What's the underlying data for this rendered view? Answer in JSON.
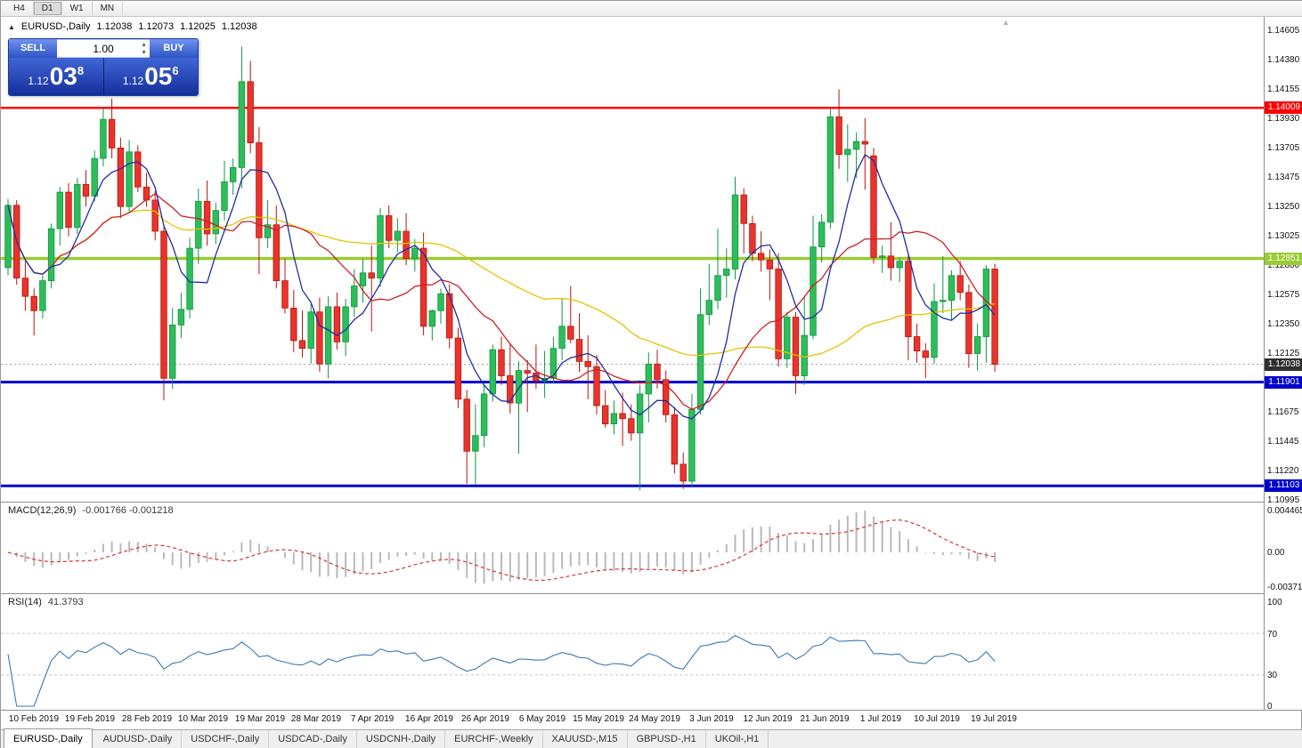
{
  "toolbar": {
    "timeframes": [
      "H4",
      "D1",
      "W1",
      "MN"
    ],
    "active": "D1"
  },
  "chart_header": {
    "collapse_icon": "▲",
    "symbol": "EURUSD-,Daily",
    "open": "1.12038",
    "high": "1.12073",
    "low": "1.12025",
    "close": "1.12038"
  },
  "trade_panel": {
    "sell_label": "SELL",
    "buy_label": "BUY",
    "volume": "1.00",
    "spinner_up_icon": "▲",
    "spinner_down_icon": "▼",
    "sell_price": {
      "prefix": "1.12",
      "big": "03",
      "sup": "8"
    },
    "buy_price": {
      "prefix": "1.12",
      "big": "05",
      "sup": "6"
    }
  },
  "current_price": {
    "value": 1.12038,
    "label": "1.12038",
    "badge_color": "#2f2f2f"
  },
  "hlines": [
    {
      "name": "resistance",
      "price": 1.14009,
      "label": "1.14009",
      "color": "#ff0000",
      "width": 2.5
    },
    {
      "name": "pivot",
      "price": 1.12851,
      "label": "1.12851",
      "color": "#9acd32",
      "width": 3.5
    },
    {
      "name": "support-1",
      "price": 1.11901,
      "label": "1.11901",
      "color": "#0000cd",
      "width": 3
    },
    {
      "name": "support-2",
      "price": 1.11103,
      "label": "1.11103",
      "color": "#0000cd",
      "width": 3
    }
  ],
  "macd_panel": {
    "label": "MACD(12,26,9)",
    "values": "-0.001766 -0.001218",
    "scale": [
      "0.004465",
      "0.00",
      "-0.003715"
    ],
    "fast": 12,
    "slow": 26,
    "signal": 9
  },
  "rsi_panel": {
    "label": "RSI(14)",
    "value": "41.3793",
    "scale": [
      "100",
      "70",
      "30",
      "0"
    ],
    "levels": [
      70,
      30
    ],
    "period": 14
  },
  "shift_marker_icon": "▲",
  "tabs": [
    {
      "label": "EURUSD-,Daily",
      "active": true
    },
    {
      "label": "AUDUSD-,Daily",
      "active": false
    },
    {
      "label": "USDCHF-,Daily",
      "active": false
    },
    {
      "label": "USDCAD-,Daily",
      "active": false
    },
    {
      "label": "USDCNH-,Daily",
      "active": false
    },
    {
      "label": "EURCHF-,Weekly",
      "active": false
    },
    {
      "label": "XAUUSD-,M15",
      "active": false
    },
    {
      "label": "GBPUSD-,H1",
      "active": false
    },
    {
      "label": "UKOil-,H1",
      "active": false
    }
  ],
  "colors": {
    "bull_fill": "#2ebd59",
    "bull_stroke": "#0e9640",
    "bear_fill": "#e8342c",
    "bear_stroke": "#b5170f",
    "macd_hist": "#b9b9b9",
    "macd_signal": "#dd3333",
    "rsi_line": "#3c78b4",
    "current_price_line": "#a0a0a0"
  },
  "chart_data": {
    "type": "candlestick",
    "title": "EURUSD-,Daily",
    "symbol": "EURUSD-",
    "timeframe": "Daily",
    "price_axis": {
      "top_label_price": 1.14605,
      "label_step": 0.00225,
      "labels": [
        "1.14605",
        "1.14380",
        "1.14155",
        "1.13930",
        "1.13705",
        "1.13475",
        "1.13250",
        "1.13025",
        "1.12800",
        "1.12575",
        "1.12350",
        "1.12125",
        "1.11900",
        "1.11675",
        "1.11445",
        "1.11220",
        "1.10995"
      ]
    },
    "dates": [
      "10 Feb 2019",
      "19 Feb 2019",
      "28 Feb 2019",
      "10 Mar 2019",
      "19 Mar 2019",
      "28 Mar 2019",
      "7 Apr 2019",
      "16 Apr 2019",
      "26 Apr 2019",
      "6 May 2019",
      "15 May 2019",
      "24 May 2019",
      "3 Jun 2019",
      "12 Jun 2019",
      "21 Jun 2019",
      "1 Jul 2019",
      "10 Jul 2019",
      "19 Jul 2019"
    ],
    "moving_averages": [
      {
        "period": 45,
        "color": "#e6c200",
        "name": "ma-slow-yellow"
      },
      {
        "period": 14,
        "color": "#cc2222",
        "name": "ma-mid-red"
      },
      {
        "period": 6,
        "color": "#1f2fa0",
        "name": "ma-fast-blue"
      }
    ],
    "candles": [
      [
        1.1278,
        1.1331,
        1.1272,
        1.1326
      ],
      [
        1.1326,
        1.133,
        1.1265,
        1.127
      ],
      [
        1.127,
        1.1283,
        1.1245,
        1.1256
      ],
      [
        1.1256,
        1.1262,
        1.1226,
        1.1245
      ],
      [
        1.1245,
        1.1272,
        1.1239,
        1.1268
      ],
      [
        1.1268,
        1.1312,
        1.1262,
        1.1308
      ],
      [
        1.1308,
        1.134,
        1.1295,
        1.1336
      ],
      [
        1.1336,
        1.1343,
        1.1302,
        1.1309
      ],
      [
        1.1309,
        1.1347,
        1.1304,
        1.1342
      ],
      [
        1.1342,
        1.1353,
        1.1325,
        1.1333
      ],
      [
        1.1333,
        1.1368,
        1.1329,
        1.1362
      ],
      [
        1.1362,
        1.1402,
        1.1356,
        1.1392
      ],
      [
        1.1392,
        1.1408,
        1.1362,
        1.137
      ],
      [
        1.137,
        1.1378,
        1.1316,
        1.1325
      ],
      [
        1.1325,
        1.1376,
        1.132,
        1.1367
      ],
      [
        1.1367,
        1.1372,
        1.1336,
        1.134
      ],
      [
        1.134,
        1.1351,
        1.1325,
        1.133
      ],
      [
        1.133,
        1.1337,
        1.1299,
        1.1306
      ],
      [
        1.1306,
        1.1311,
        1.1176,
        1.1193
      ],
      [
        1.1193,
        1.1247,
        1.1185,
        1.1234
      ],
      [
        1.1234,
        1.1259,
        1.1224,
        1.1246
      ],
      [
        1.1246,
        1.1301,
        1.1239,
        1.1293
      ],
      [
        1.1293,
        1.1339,
        1.1281,
        1.1329
      ],
      [
        1.1329,
        1.1345,
        1.1295,
        1.1304
      ],
      [
        1.1304,
        1.1328,
        1.1296,
        1.1322
      ],
      [
        1.1322,
        1.136,
        1.1314,
        1.1344
      ],
      [
        1.1344,
        1.1362,
        1.1334,
        1.1355
      ],
      [
        1.1355,
        1.1448,
        1.1339,
        1.1421
      ],
      [
        1.1421,
        1.1437,
        1.1366,
        1.1374
      ],
      [
        1.1374,
        1.1386,
        1.1273,
        1.1301
      ],
      [
        1.1301,
        1.133,
        1.1293,
        1.1311
      ],
      [
        1.1311,
        1.1326,
        1.1262,
        1.1268
      ],
      [
        1.1268,
        1.1285,
        1.1243,
        1.1247
      ],
      [
        1.1247,
        1.1261,
        1.1213,
        1.1222
      ],
      [
        1.1222,
        1.1245,
        1.1209,
        1.1216
      ],
      [
        1.1216,
        1.125,
        1.1204,
        1.1244
      ],
      [
        1.1244,
        1.1255,
        1.1198,
        1.1204
      ],
      [
        1.1204,
        1.1256,
        1.1193,
        1.1248
      ],
      [
        1.1248,
        1.1259,
        1.1215,
        1.1221
      ],
      [
        1.1221,
        1.1254,
        1.121,
        1.1248
      ],
      [
        1.1248,
        1.1277,
        1.124,
        1.1264
      ],
      [
        1.1264,
        1.1285,
        1.1251,
        1.1274
      ],
      [
        1.1274,
        1.1295,
        1.1229,
        1.127
      ],
      [
        1.127,
        1.1324,
        1.1263,
        1.1318
      ],
      [
        1.1318,
        1.1326,
        1.1293,
        1.1299
      ],
      [
        1.1299,
        1.1316,
        1.129,
        1.1306
      ],
      [
        1.1306,
        1.132,
        1.128,
        1.1285
      ],
      [
        1.1285,
        1.13,
        1.1275,
        1.1293
      ],
      [
        1.1293,
        1.1305,
        1.1226,
        1.1233
      ],
      [
        1.1233,
        1.1246,
        1.1222,
        1.1245
      ],
      [
        1.1245,
        1.1262,
        1.1235,
        1.1258
      ],
      [
        1.1258,
        1.1265,
        1.1216,
        1.1224
      ],
      [
        1.1224,
        1.1232,
        1.117,
        1.1177
      ],
      [
        1.1177,
        1.1184,
        1.1112,
        1.1137
      ],
      [
        1.1137,
        1.1173,
        1.1111,
        1.1149
      ],
      [
        1.1149,
        1.1188,
        1.114,
        1.1181
      ],
      [
        1.1181,
        1.1219,
        1.1175,
        1.1215
      ],
      [
        1.1215,
        1.1225,
        1.1188,
        1.1195
      ],
      [
        1.1195,
        1.1219,
        1.1166,
        1.1174
      ],
      [
        1.1174,
        1.1206,
        1.1135,
        1.1199
      ],
      [
        1.1199,
        1.1207,
        1.1167,
        1.1197
      ],
      [
        1.1197,
        1.1219,
        1.1185,
        1.1191
      ],
      [
        1.1191,
        1.1214,
        1.1178,
        1.1193
      ],
      [
        1.1193,
        1.1225,
        1.1189,
        1.1216
      ],
      [
        1.1216,
        1.1254,
        1.1207,
        1.1233
      ],
      [
        1.1233,
        1.1264,
        1.122,
        1.1223
      ],
      [
        1.1223,
        1.1243,
        1.1198,
        1.1206
      ],
      [
        1.1206,
        1.1226,
        1.1177,
        1.1202
      ],
      [
        1.1202,
        1.1211,
        1.1165,
        1.1172
      ],
      [
        1.1172,
        1.1184,
        1.1155,
        1.1158
      ],
      [
        1.1158,
        1.1176,
        1.115,
        1.1166
      ],
      [
        1.1166,
        1.1182,
        1.1141,
        1.1162
      ],
      [
        1.1162,
        1.1173,
        1.1145,
        1.1151
      ],
      [
        1.1151,
        1.1188,
        1.1107,
        1.1181
      ],
      [
        1.1181,
        1.1213,
        1.1159,
        1.1204
      ],
      [
        1.1204,
        1.1215,
        1.1185,
        1.1192
      ],
      [
        1.1192,
        1.1199,
        1.1159,
        1.1165
      ],
      [
        1.1165,
        1.1171,
        1.112,
        1.1127
      ],
      [
        1.1127,
        1.1136,
        1.1108,
        1.1114
      ],
      [
        1.1114,
        1.1181,
        1.111,
        1.1169
      ],
      [
        1.1169,
        1.1262,
        1.1165,
        1.1242
      ],
      [
        1.1242,
        1.1281,
        1.1234,
        1.1253
      ],
      [
        1.1253,
        1.1308,
        1.1246,
        1.1272
      ],
      [
        1.1272,
        1.1293,
        1.1255,
        1.1277
      ],
      [
        1.1277,
        1.1348,
        1.1269,
        1.1334
      ],
      [
        1.1334,
        1.1339,
        1.1289,
        1.1312
      ],
      [
        1.1312,
        1.1318,
        1.1283,
        1.1289
      ],
      [
        1.1289,
        1.1306,
        1.1275,
        1.1284
      ],
      [
        1.1284,
        1.1292,
        1.1253,
        1.1277
      ],
      [
        1.1277,
        1.1289,
        1.1202,
        1.1208
      ],
      [
        1.1208,
        1.1244,
        1.1201,
        1.124
      ],
      [
        1.124,
        1.1244,
        1.1181,
        1.1195
      ],
      [
        1.1195,
        1.1256,
        1.1188,
        1.1226
      ],
      [
        1.1226,
        1.1318,
        1.1223,
        1.1294
      ],
      [
        1.1294,
        1.1319,
        1.1282,
        1.1313
      ],
      [
        1.1313,
        1.14,
        1.1308,
        1.1394
      ],
      [
        1.1394,
        1.1415,
        1.1354,
        1.1365
      ],
      [
        1.1365,
        1.1388,
        1.1344,
        1.1369
      ],
      [
        1.1369,
        1.1382,
        1.1347,
        1.1375
      ],
      [
        1.1375,
        1.1393,
        1.1338,
        1.1373
      ],
      [
        1.1364,
        1.137,
        1.1281,
        1.1286
      ],
      [
        1.1286,
        1.1295,
        1.1274,
        1.1287
      ],
      [
        1.1287,
        1.1313,
        1.1268,
        1.1278
      ],
      [
        1.1278,
        1.1286,
        1.1267,
        1.1283
      ],
      [
        1.1283,
        1.1288,
        1.1207,
        1.1225
      ],
      [
        1.1225,
        1.1235,
        1.1205,
        1.1214
      ],
      [
        1.1214,
        1.122,
        1.1193,
        1.1209
      ],
      [
        1.1209,
        1.1266,
        1.1204,
        1.1252
      ],
      [
        1.1252,
        1.1287,
        1.1243,
        1.1253
      ],
      [
        1.1253,
        1.1276,
        1.1238,
        1.1272
      ],
      [
        1.1272,
        1.1283,
        1.1253,
        1.1259
      ],
      [
        1.1259,
        1.1265,
        1.1201,
        1.1212
      ],
      [
        1.1212,
        1.1235,
        1.1199,
        1.1225
      ],
      [
        1.1225,
        1.128,
        1.1205,
        1.1277
      ],
      [
        1.1277,
        1.1281,
        1.1198,
        1.12038
      ]
    ]
  }
}
